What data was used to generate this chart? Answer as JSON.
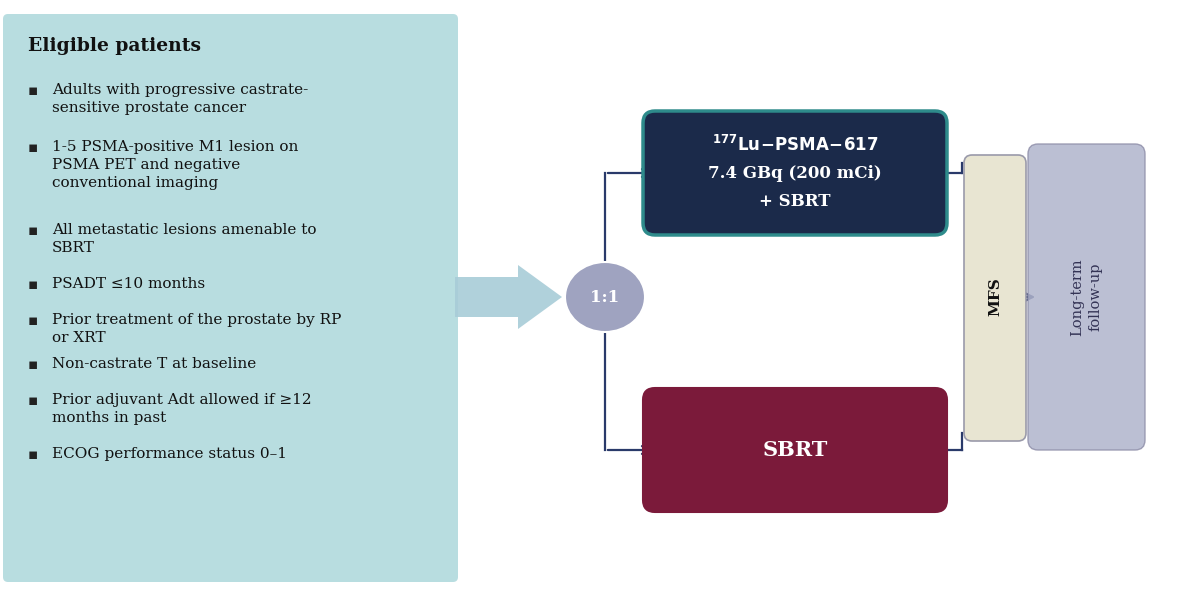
{
  "bg_color": "#ffffff",
  "eligible_box_color": "#b8dde0",
  "eligible_box_border": "#b8dde0",
  "eligible_title": "Eligible patients",
  "eligible_bullets": [
    "Adults with progressive castrate-\nsensitive prostate cancer",
    "1-5 PSMA-positive M1 lesion on\nPSMA PET and negative\nconventional imaging",
    "All metastatic lesions amenable to\nSBRT",
    "PSADT ≤10 months",
    "Prior treatment of the prostate by RP\nor XRT",
    "Non-castrate T at baseline",
    "Prior adjuvant Adt allowed if ≥12\nmonths in past",
    "ECOG performance status 0–1"
  ],
  "randomize_ellipse_color": "#9fa3c0",
  "randomize_text": "1:1",
  "arm1_box_color": "#1b2a4a",
  "arm1_box_border": "#2e8b8b",
  "arm2_box_color": "#7b1a3a",
  "arm2_box_border": "#7b1a3a",
  "mfs_box_color": "#e8e5d2",
  "mfs_box_border": "#9a9aaa",
  "followup_box_color": "#b0b4cc",
  "followup_box_border": "#9090aa",
  "arrow_color": "#2a3a6a",
  "big_arrow_color": "#a8ccd8"
}
